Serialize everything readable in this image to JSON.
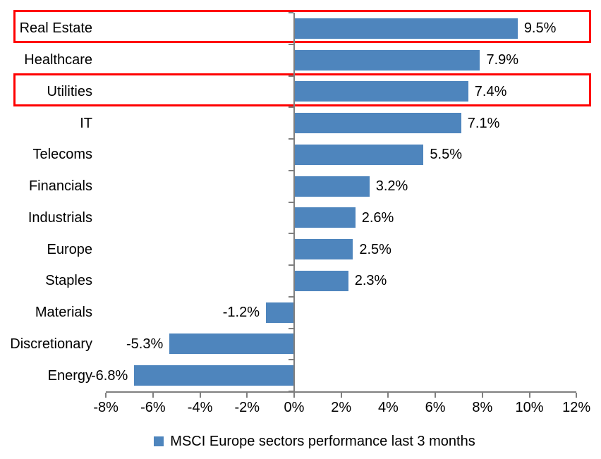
{
  "chart_data": {
    "type": "bar",
    "orientation": "horizontal",
    "title": "",
    "categories": [
      "Real Estate",
      "Healthcare",
      "Utilities",
      "IT",
      "Telecoms",
      "Financials",
      "Industrials",
      "Europe",
      "Staples",
      "Materials",
      "Discretionary",
      "Energy"
    ],
    "values": [
      9.5,
      7.9,
      7.4,
      7.1,
      5.5,
      3.2,
      2.6,
      2.5,
      2.3,
      -1.2,
      -5.3,
      -6.8
    ],
    "data_labels": [
      "9.5%",
      "7.9%",
      "7.4%",
      "7.1%",
      "5.5%",
      "3.2%",
      "2.6%",
      "2.5%",
      "2.3%",
      "-1.2%",
      "-5.3%",
      "-6.8%"
    ],
    "highlighted_categories": [
      "Real Estate",
      "Utilities"
    ],
    "xlim": [
      -8,
      12
    ],
    "x_tick_values": [
      -8,
      -6,
      -4,
      -2,
      0,
      2,
      4,
      6,
      8,
      10,
      12
    ],
    "x_tick_labels": [
      "-8%",
      "-6%",
      "-4%",
      "-2%",
      "0%",
      "2%",
      "4%",
      "6%",
      "8%",
      "10%",
      "12%"
    ],
    "grid": false,
    "legend_position": "bottom",
    "legend_label": "MSCI Europe sectors performance last 3 months",
    "bar_color": "#4E85BD",
    "highlight_color": "#FF0000",
    "axis_color": "#7F7F7F",
    "text_color": "#000000"
  }
}
